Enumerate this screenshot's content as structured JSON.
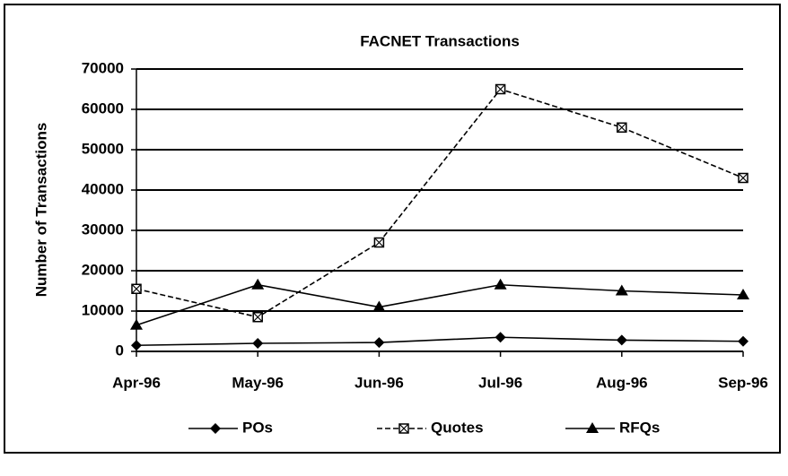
{
  "chart_data": {
    "type": "line",
    "title": "FACNET Transactions",
    "y_label": "Number of Transactions",
    "categories": [
      "Apr-96",
      "May-96",
      "Jun-96",
      "Jul-96",
      "Aug-96",
      "Sep-96"
    ],
    "series": [
      {
        "name": "POs",
        "color": "#000000",
        "marker": "diamond",
        "line_style": "solid",
        "values": [
          1500,
          2000,
          2200,
          3500,
          2800,
          2500
        ]
      },
      {
        "name": "Quotes",
        "color": "#000000",
        "marker": "square-x",
        "line_style": "dashed",
        "values": [
          15500,
          8500,
          27000,
          65000,
          55500,
          43000
        ]
      },
      {
        "name": "RFQs",
        "color": "#000000",
        "marker": "triangle",
        "line_style": "solid",
        "values": [
          6500,
          16500,
          11000,
          16500,
          15000,
          14000
        ]
      }
    ],
    "ylim": [
      0,
      70000
    ],
    "yticks": [
      0,
      10000,
      20000,
      30000,
      40000,
      50000,
      60000,
      70000
    ],
    "grid": true,
    "legend": "bottom"
  }
}
